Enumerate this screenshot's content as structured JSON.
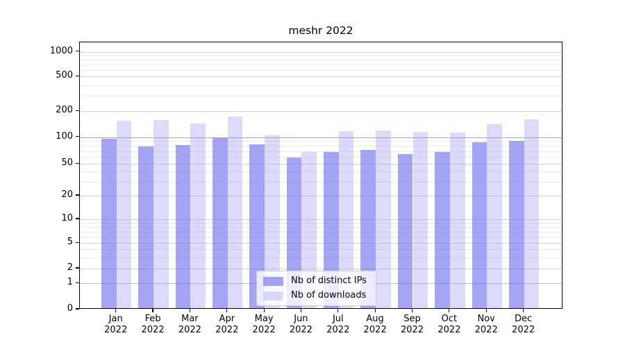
{
  "title": "meshr 2022",
  "chart_data": {
    "type": "bar",
    "title": "meshr 2022",
    "categories": [
      "Jan",
      "Feb",
      "Mar",
      "Apr",
      "May",
      "Jun",
      "Jul",
      "Aug",
      "Sep",
      "Oct",
      "Nov",
      "Dec"
    ],
    "category_year": "2022",
    "series": [
      {
        "name": "Nb of distinct IPs",
        "color": "rgba(105,105,238,0.6)",
        "values": [
          92,
          76,
          79,
          94,
          80,
          57,
          66,
          69,
          62,
          66,
          84,
          88
        ]
      },
      {
        "name": "Nb of downloads",
        "color": "rgba(155,155,241,0.35)",
        "values": [
          150,
          153,
          140,
          168,
          101,
          66,
          113,
          115,
          110,
          108,
          137,
          156
        ]
      }
    ],
    "xlabel": "",
    "ylabel": "",
    "yscale": "symlog",
    "y_ticks": [
      0,
      1,
      2,
      5,
      10,
      20,
      50,
      100,
      200,
      500,
      1000
    ],
    "ylim": [
      0,
      1300
    ],
    "grid": true,
    "legend_position": "lower center"
  },
  "legend": {
    "items": [
      {
        "label": "Nb of distinct IPs"
      },
      {
        "label": "Nb of downloads"
      }
    ]
  }
}
